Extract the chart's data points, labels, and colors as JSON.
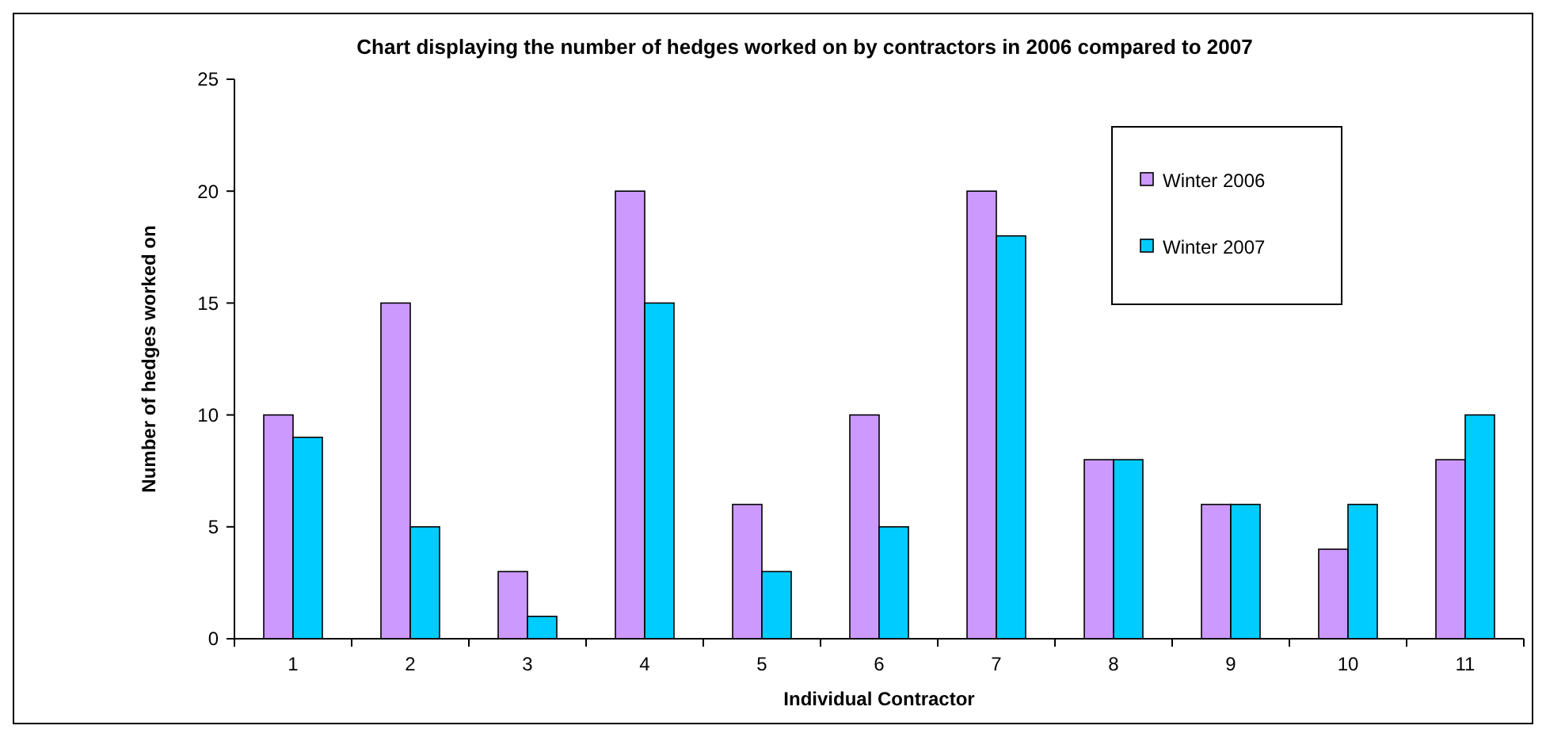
{
  "chart_data": {
    "type": "bar",
    "title": "Chart displaying the number of hedges worked on by contractors in 2006 compared to 2007",
    "xlabel": "Individual Contractor",
    "ylabel": "Number of hedges worked on",
    "categories": [
      "1",
      "2",
      "3",
      "4",
      "5",
      "6",
      "7",
      "8",
      "9",
      "10",
      "11"
    ],
    "series": [
      {
        "name": "Winter 2006",
        "color": "#cc99ff",
        "values": [
          10,
          15,
          3,
          20,
          6,
          10,
          20,
          8,
          6,
          4,
          8
        ]
      },
      {
        "name": "Winter 2007",
        "color": "#00ccff",
        "values": [
          9,
          5,
          1,
          15,
          3,
          5,
          18,
          8,
          6,
          6,
          10
        ]
      }
    ],
    "ylim": [
      0,
      25
    ],
    "yticks": [
      0,
      5,
      10,
      15,
      20,
      25
    ],
    "grid": false,
    "legend": "top right"
  }
}
